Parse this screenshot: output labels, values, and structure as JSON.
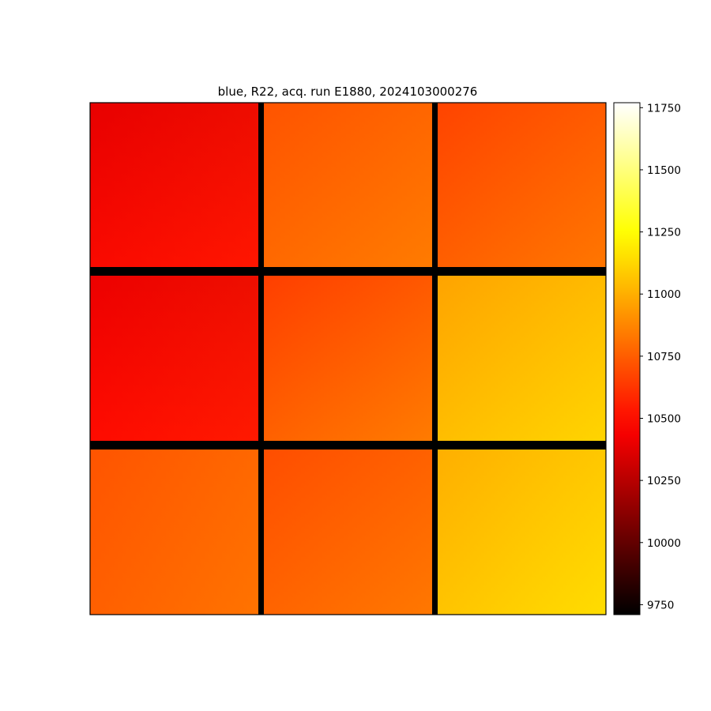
{
  "chart_data": {
    "type": "heatmap",
    "title": "blue, R22, acq. run E1880, 2024103000276",
    "xlabel": "",
    "ylabel": "",
    "axes_ticks_visible": false,
    "colormap": "hot",
    "colorbar": {
      "vmin": 9710,
      "vmax": 11770,
      "ticks": [
        9750,
        10000,
        10250,
        10500,
        10750,
        11000,
        11250,
        11500,
        11750
      ]
    },
    "grid": {
      "rows": 3,
      "cols": 3
    },
    "panels": [
      {
        "row": 0,
        "col": 0,
        "left": 10430,
        "right": 10540,
        "top": 10360,
        "bottom": 10520
      },
      {
        "row": 0,
        "col": 1,
        "left": 10740,
        "right": 10850,
        "top": 10700,
        "bottom": 10830
      },
      {
        "row": 0,
        "col": 2,
        "left": 10700,
        "right": 10840,
        "top": 10640,
        "bottom": 10810
      },
      {
        "row": 1,
        "col": 0,
        "left": 10460,
        "right": 10550,
        "top": 10360,
        "bottom": 10530
      },
      {
        "row": 1,
        "col": 1,
        "left": 10690,
        "right": 10850,
        "top": 10620,
        "bottom": 10830
      },
      {
        "row": 1,
        "col": 2,
        "left": 10980,
        "right": 11120,
        "top": 10950,
        "bottom": 11110
      },
      {
        "row": 2,
        "col": 0,
        "left": 10720,
        "right": 10840,
        "top": 10720,
        "bottom": 10790
      },
      {
        "row": 2,
        "col": 1,
        "left": 10730,
        "right": 10850,
        "top": 10670,
        "bottom": 10810
      },
      {
        "row": 2,
        "col": 2,
        "left": 11000,
        "right": 11150,
        "top": 11000,
        "bottom": 11130
      }
    ],
    "gap_value": 9710
  }
}
